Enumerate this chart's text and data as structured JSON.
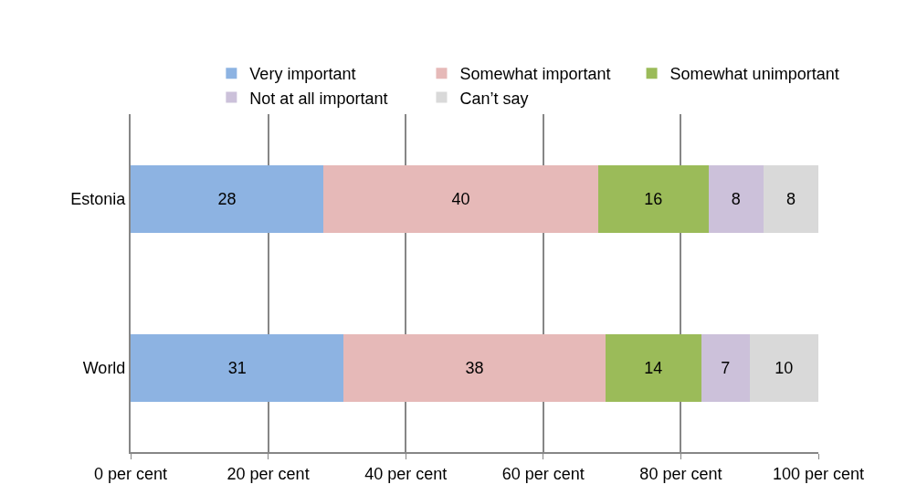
{
  "chart_data": {
    "type": "bar",
    "orientation": "horizontal",
    "stacked": true,
    "data_labels": true,
    "categories": [
      "Estonia",
      "World"
    ],
    "series": [
      {
        "name": "Very important",
        "color": "#8db3e2",
        "values": [
          28,
          31
        ]
      },
      {
        "name": "Somewhat important",
        "color": "#e6b9b8",
        "values": [
          40,
          38
        ]
      },
      {
        "name": "Somewhat unimportant",
        "color": "#9bbb59",
        "values": [
          16,
          14
        ]
      },
      {
        "name": "Not at all important",
        "color": "#ccc1da",
        "values": [
          8,
          7
        ]
      },
      {
        "name": "Can’t say",
        "color": "#d9d9d9",
        "values": [
          8,
          10
        ]
      }
    ],
    "xlim": [
      0,
      100
    ],
    "xticks": [
      {
        "value": 0,
        "label": "0 per cent"
      },
      {
        "value": 20,
        "label": "20 per cent"
      },
      {
        "value": 40,
        "label": "40 per cent"
      },
      {
        "value": 60,
        "label": "60 per cent"
      },
      {
        "value": 80,
        "label": "80 per cent"
      },
      {
        "value": 100,
        "label": "100 per cent"
      }
    ],
    "grid": "x",
    "legend": "top"
  }
}
